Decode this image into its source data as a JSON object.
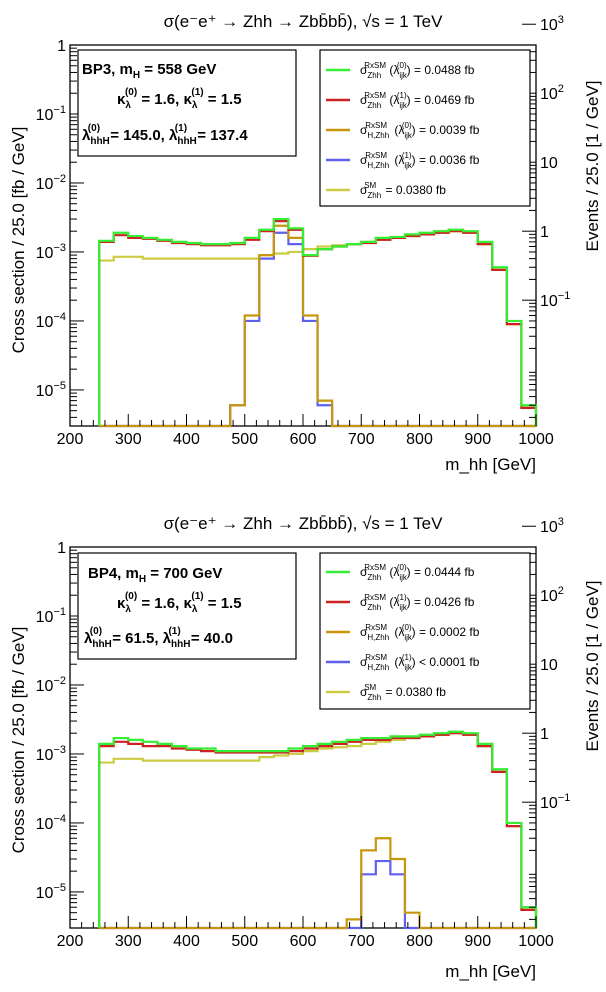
{
  "chart_data": [
    {
      "type": "line",
      "title": "σ(e⁻e⁺ → Zhh → Zbb̄bb̄), √s = 1 TeV",
      "xlabel": "m_hh [GeV]",
      "ylabel": "Cross section / 25.0 [fb / GeV]",
      "y2label": "Events / 25.0 [1 / GeV]",
      "xlim": [
        200,
        1000
      ],
      "ylim": [
        3e-06,
        1
      ],
      "yscale": "log",
      "x_ticks": [
        "200",
        "300",
        "400",
        "500",
        "600",
        "700",
        "800",
        "900",
        "1000"
      ],
      "y_ticks": [
        "1",
        "10⁻¹",
        "10⁻²",
        "10⁻³",
        "10⁻⁴",
        "10⁻⁵"
      ],
      "y2_ticks": [
        "10³",
        "10²",
        "10",
        "1",
        "10⁻¹"
      ],
      "info_box": {
        "line1": "BP3, m_H = 558 GeV",
        "line2": "κ_λ^(0) = 1.6, κ_λ^(1) = 1.5",
        "line3": "λ_hhH^(0) = 145.0, λ_hhH^(1) = 137.4"
      },
      "legend_position": "top-right",
      "bin_edges": [
        250,
        275,
        300,
        325,
        350,
        375,
        400,
        425,
        450,
        475,
        500,
        525,
        550,
        575,
        600,
        625,
        650,
        675,
        700,
        725,
        750,
        775,
        800,
        825,
        850,
        875,
        900,
        925,
        950,
        975,
        1000
      ],
      "series": [
        {
          "name": "σ_Zhh^RxSM (λ_ijk^(0)) = 0.0488 fb",
          "color": "#33ee33",
          "values": [
            0.00145,
            0.0019,
            0.0017,
            0.0016,
            0.0015,
            0.0014,
            0.00135,
            0.0013,
            0.0013,
            0.00135,
            0.0016,
            0.0021,
            0.003,
            0.0022,
            0.0009,
            0.0011,
            0.0012,
            0.0013,
            0.0014,
            0.0016,
            0.00165,
            0.0018,
            0.0019,
            0.002,
            0.0021,
            0.002,
            0.0014,
            0.0006,
            0.0001,
            6e-06
          ]
        },
        {
          "name": "σ_Zhh^RxSM (λ_ijk^(1)) = 0.0469 fb",
          "color": "#cc2222",
          "values": [
            0.0014,
            0.00175,
            0.0016,
            0.00155,
            0.00145,
            0.00135,
            0.0013,
            0.00125,
            0.00125,
            0.0013,
            0.0015,
            0.002,
            0.0028,
            0.0021,
            0.00088,
            0.0011,
            0.0012,
            0.0013,
            0.00135,
            0.0015,
            0.0016,
            0.0017,
            0.0018,
            0.0019,
            0.002,
            0.0019,
            0.0013,
            0.00055,
            9e-05,
            5.5e-06
          ]
        },
        {
          "name": "σ_H,Zhh^RxSM (λ_ijk^(0)) = 0.0039 fb",
          "color": "#c8960c",
          "values": [
            0,
            0,
            0,
            0,
            0,
            0,
            0,
            0,
            0,
            6e-06,
            0.00012,
            0.0009,
            0.0024,
            0.0016,
            0.00012,
            7e-06,
            0,
            0,
            0,
            0,
            0,
            0,
            0,
            0,
            0,
            0,
            0,
            0,
            0,
            0
          ]
        },
        {
          "name": "σ_H,Zhh^RxSM (λ_ijk^(1)) = 0.0036 fb",
          "color": "#6060ee",
          "values": [
            0,
            0,
            0,
            0,
            0,
            0,
            0,
            0,
            0,
            6e-06,
            0.0001,
            0.0008,
            0.0019,
            0.0013,
            0.0001,
            6e-06,
            0,
            0,
            0,
            0,
            0,
            0,
            0,
            0,
            0,
            0,
            0,
            0,
            0,
            0
          ]
        },
        {
          "name": "σ_Zhh^SM = 0.0380 fb",
          "color": "#cccc44",
          "values": [
            0.00075,
            0.00085,
            0.00085,
            0.0008,
            0.0008,
            0.0008,
            0.0008,
            0.0008,
            0.0008,
            0.0008,
            0.0008,
            0.0009,
            0.00095,
            0.001,
            0.0011,
            0.0012,
            0.00125,
            0.0013,
            0.0014,
            0.0015,
            0.0016,
            0.0017,
            0.0018,
            0.0019,
            0.002,
            0.0019,
            0.0013,
            0.00055,
            9e-05,
            5.5e-06
          ]
        }
      ]
    },
    {
      "type": "line",
      "title": "σ(e⁻e⁺ → Zhh → Zbb̄bb̄), √s = 1 TeV",
      "xlabel": "m_hh [GeV]",
      "ylabel": "Cross section / 25.0 [fb / GeV]",
      "y2label": "Events / 25.0 [1 / GeV]",
      "xlim": [
        200,
        1000
      ],
      "ylim": [
        3e-06,
        1
      ],
      "yscale": "log",
      "x_ticks": [
        "200",
        "300",
        "400",
        "500",
        "600",
        "700",
        "800",
        "900",
        "1000"
      ],
      "y_ticks": [
        "1",
        "10⁻¹",
        "10⁻²",
        "10⁻³",
        "10⁻⁴",
        "10⁻⁵"
      ],
      "y2_ticks": [
        "10³",
        "10²",
        "10",
        "1",
        "10⁻¹"
      ],
      "info_box": {
        "line1": "BP4, m_H = 700 GeV",
        "line2": "κ_λ^(0) = 1.6, κ_λ^(1) = 1.5",
        "line3": "λ_hhH^(0) = 61.5, λ_hhH^(1) = 40.0"
      },
      "legend_position": "top-right",
      "bin_edges": [
        250,
        275,
        300,
        325,
        350,
        375,
        400,
        425,
        450,
        475,
        500,
        525,
        550,
        575,
        600,
        625,
        650,
        675,
        700,
        725,
        750,
        775,
        800,
        825,
        850,
        875,
        900,
        925,
        950,
        975,
        1000
      ],
      "series": [
        {
          "name": "σ_Zhh^RxSM (λ_ijk^(0)) = 0.0444 fb",
          "color": "#33ee33",
          "values": [
            0.0014,
            0.0017,
            0.0016,
            0.0015,
            0.0014,
            0.0013,
            0.0012,
            0.0012,
            0.0011,
            0.0011,
            0.0011,
            0.0011,
            0.0011,
            0.0012,
            0.0013,
            0.0014,
            0.0015,
            0.0016,
            0.0017,
            0.0017,
            0.0018,
            0.0018,
            0.0019,
            0.002,
            0.0021,
            0.002,
            0.0014,
            0.0006,
            0.0001,
            6e-06
          ]
        },
        {
          "name": "σ_Zhh^RxSM (λ_ijk^(1)) = 0.0426 fb",
          "color": "#cc2222",
          "values": [
            0.0013,
            0.0015,
            0.0014,
            0.0013,
            0.0013,
            0.0012,
            0.00115,
            0.0011,
            0.00105,
            0.00105,
            0.00105,
            0.00105,
            0.00105,
            0.0011,
            0.0012,
            0.0013,
            0.0014,
            0.0015,
            0.0016,
            0.0016,
            0.0017,
            0.0017,
            0.0018,
            0.0019,
            0.002,
            0.0019,
            0.0013,
            0.00055,
            9e-05,
            5.5e-06
          ]
        },
        {
          "name": "σ_H,Zhh^RxSM (λ_ijk^(0)) = 0.0002 fb",
          "color": "#c8960c",
          "values": [
            0,
            0,
            0,
            0,
            0,
            0,
            0,
            0,
            0,
            0,
            0,
            0,
            0,
            0,
            0,
            0,
            0,
            4e-06,
            4e-05,
            6e-05,
            3e-05,
            5e-06,
            0,
            0,
            0,
            0,
            0,
            0,
            0,
            0
          ]
        },
        {
          "name": "σ_H,Zhh^RxSM (λ_ijk^(1)) < 0.0001 fb",
          "color": "#6060ee",
          "values": [
            0,
            0,
            0,
            0,
            0,
            0,
            0,
            0,
            0,
            0,
            0,
            0,
            0,
            0,
            0,
            0,
            0,
            0,
            1.8e-05,
            2.8e-05,
            1.8e-05,
            0,
            0,
            0,
            0,
            0,
            0,
            0,
            0,
            0
          ]
        },
        {
          "name": "σ_Zhh^SM = 0.0380 fb",
          "color": "#cccc44",
          "values": [
            0.00075,
            0.00085,
            0.00085,
            0.0008,
            0.0008,
            0.0008,
            0.0008,
            0.0008,
            0.0008,
            0.0008,
            0.0008,
            0.0009,
            0.00095,
            0.001,
            0.0011,
            0.0012,
            0.00125,
            0.0013,
            0.0014,
            0.0015,
            0.0016,
            0.0017,
            0.0018,
            0.0019,
            0.002,
            0.0019,
            0.0013,
            0.00055,
            9e-05,
            5.5e-06
          ]
        }
      ]
    }
  ]
}
